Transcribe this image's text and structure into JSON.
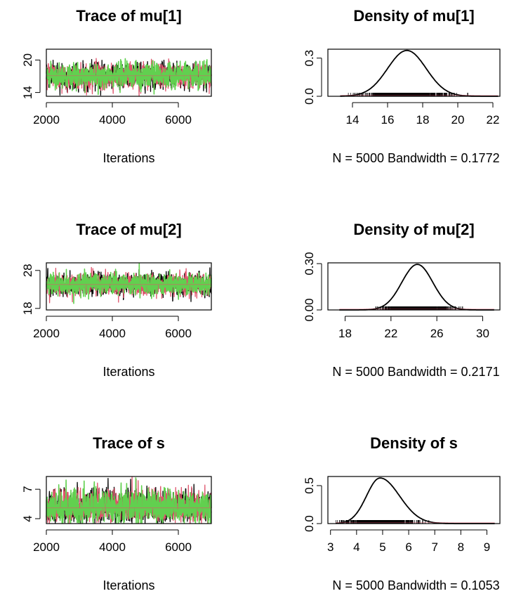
{
  "chart_data": [
    {
      "type": "line",
      "panel": "trace",
      "title": "Trace of mu[1]",
      "xlabel": "Iterations",
      "x_ticks": [
        2000,
        4000,
        6000
      ],
      "y_ticks": [
        14,
        20
      ],
      "xlim": [
        2000,
        7000
      ],
      "ylim": [
        13.3,
        22.0
      ],
      "iterations": [
        2001,
        7000
      ],
      "mean": 17.1,
      "sd": 1.1,
      "chains": 3,
      "colors": [
        "#000000",
        "#DF536B",
        "#61D04F"
      ]
    },
    {
      "type": "area",
      "panel": "density",
      "title": "Density of mu[1]",
      "xlabel": "N = 5000   Bandwidth = 0.1772",
      "x_ticks": [
        14,
        16,
        18,
        20,
        22
      ],
      "y_ticks": [
        "0.0",
        "0.3"
      ],
      "xlim": [
        12.6,
        22.4
      ],
      "ylim": [
        0,
        0.37
      ],
      "peak_x": 17.1,
      "peak_y": 0.36,
      "sd": 1.1,
      "support": [
        13.3,
        22.3
      ],
      "color": "#000000"
    },
    {
      "type": "line",
      "panel": "trace",
      "title": "Trace of mu[2]",
      "xlabel": "Iterations",
      "x_ticks": [
        2000,
        4000,
        6000
      ],
      "y_ticks": [
        18,
        28
      ],
      "xlim": [
        2000,
        7000
      ],
      "ylim": [
        17.6,
        30.0
      ],
      "iterations": [
        2001,
        7000
      ],
      "mean": 24.3,
      "sd": 1.35,
      "chains": 3,
      "colors": [
        "#000000",
        "#DF536B",
        "#61D04F"
      ]
    },
    {
      "type": "area",
      "panel": "density",
      "title": "Density of mu[2]",
      "xlabel": "N = 5000   Bandwidth = 0.2171",
      "x_ticks": [
        18,
        22,
        26,
        30
      ],
      "y_ticks": [
        "0.00",
        "0.30"
      ],
      "xlim": [
        16.5,
        31.5
      ],
      "ylim": [
        0,
        0.305
      ],
      "peak_x": 24.3,
      "peak_y": 0.295,
      "sd": 1.35,
      "support": [
        17.5,
        31.0
      ],
      "color": "#000000"
    },
    {
      "type": "line",
      "panel": "trace",
      "title": "Trace of s",
      "xlabel": "Iterations",
      "x_ticks": [
        2000,
        4000,
        6000
      ],
      "y_ticks": [
        4,
        7
      ],
      "xlim": [
        2000,
        7000
      ],
      "ylim": [
        3.5,
        8.3
      ],
      "iterations": [
        2001,
        7000
      ],
      "mean": 5.1,
      "sd": 0.65,
      "chains": 3,
      "colors": [
        "#000000",
        "#DF536B",
        "#61D04F"
      ]
    },
    {
      "type": "area",
      "panel": "density",
      "title": "Density of s",
      "xlabel": "N = 5000   Bandwidth = 0.1053",
      "x_ticks": [
        3,
        4,
        5,
        6,
        7,
        8,
        9
      ],
      "y_ticks": [
        "0.0",
        "0.5"
      ],
      "xlim": [
        2.9,
        9.5
      ],
      "ylim": [
        0,
        0.62
      ],
      "peak_x": 4.9,
      "peak_y": 0.6,
      "sd_left": 0.52,
      "sd_right": 0.75,
      "support": [
        3.2,
        9.3
      ],
      "color": "#000000"
    }
  ]
}
